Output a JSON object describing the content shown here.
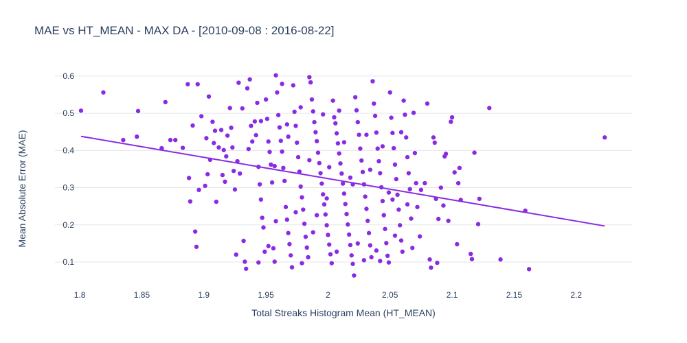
{
  "chart_data": {
    "type": "scatter",
    "title": "MAE vs HT_MEAN - MAX DA - [2010-09-08 : 2016-08-22]",
    "xlabel": "Total Streaks Histogram Mean (HT_MEAN)",
    "ylabel": "Mean Absolute Error (MAE)",
    "xlim": [
      1.78,
      2.245
    ],
    "ylim": [
      0.03,
      0.62
    ],
    "x_ticks": [
      "1.8",
      "1.85",
      "1.9",
      "1.95",
      "2",
      "2.05",
      "2.1",
      "2.15",
      "2.2"
    ],
    "x_tick_values": [
      1.8,
      1.85,
      1.9,
      1.95,
      2.0,
      2.05,
      2.1,
      2.15,
      2.2
    ],
    "y_ticks": [
      "0.1",
      "0.2",
      "0.3",
      "0.4",
      "0.5",
      "0.6"
    ],
    "y_tick_values": [
      0.1,
      0.2,
      0.3,
      0.4,
      0.5,
      0.6
    ],
    "grid": "horizontal",
    "colors": {
      "series": "#8a2be2",
      "text": "#2a3f5f",
      "grid": "#e4e6ea"
    },
    "trendline": {
      "x": [
        1.801,
        2.223
      ],
      "y": [
        0.438,
        0.197
      ]
    },
    "points": [
      [
        1.801,
        0.507
      ],
      [
        1.819,
        0.556
      ],
      [
        1.835,
        0.428
      ],
      [
        1.846,
        0.437
      ],
      [
        1.847,
        0.506
      ],
      [
        1.866,
        0.406
      ],
      [
        1.869,
        0.53
      ],
      [
        1.873,
        0.428
      ],
      [
        1.877,
        0.428
      ],
      [
        1.883,
        0.407
      ],
      [
        1.887,
        0.578
      ],
      [
        1.888,
        0.326
      ],
      [
        1.889,
        0.263
      ],
      [
        1.891,
        0.467
      ],
      [
        1.893,
        0.182
      ],
      [
        1.894,
        0.141
      ],
      [
        1.895,
        0.578
      ],
      [
        1.896,
        0.294
      ],
      [
        1.898,
        0.492
      ],
      [
        1.901,
        0.305
      ],
      [
        1.902,
        0.433
      ],
      [
        1.903,
        0.336
      ],
      [
        1.904,
        0.545
      ],
      [
        1.905,
        0.375
      ],
      [
        1.907,
        0.477
      ],
      [
        1.908,
        0.42
      ],
      [
        1.909,
        0.453
      ],
      [
        1.91,
        0.262
      ],
      [
        1.912,
        0.408
      ],
      [
        1.914,
        0.455
      ],
      [
        1.916,
        0.401
      ],
      [
        1.917,
        0.316
      ],
      [
        1.918,
        0.384
      ],
      [
        1.919,
        0.44
      ],
      [
        1.921,
        0.514
      ],
      [
        1.922,
        0.461
      ],
      [
        1.923,
        0.408
      ],
      [
        1.924,
        0.345
      ],
      [
        1.925,
        0.295
      ],
      [
        1.927,
        0.371
      ],
      [
        1.928,
        0.582
      ],
      [
        1.929,
        0.338
      ],
      [
        1.931,
        0.513
      ],
      [
        1.932,
        0.157
      ],
      [
        1.933,
        0.101
      ],
      [
        1.934,
        0.082
      ],
      [
        1.935,
        0.567
      ],
      [
        1.936,
        0.404
      ],
      [
        1.937,
        0.591
      ],
      [
        1.939,
        0.424
      ],
      [
        1.941,
        0.478
      ],
      [
        1.942,
        0.441
      ],
      [
        1.943,
        0.528
      ],
      [
        1.944,
        0.356
      ],
      [
        1.945,
        0.309
      ],
      [
        1.946,
        0.268
      ],
      [
        1.947,
        0.219
      ],
      [
        1.948,
        0.193
      ],
      [
        1.949,
        0.128
      ],
      [
        1.95,
        0.537
      ],
      [
        1.951,
        0.485
      ],
      [
        1.952,
        0.424
      ],
      [
        1.953,
        0.396
      ],
      [
        1.954,
        0.362
      ],
      [
        1.955,
        0.314
      ],
      [
        1.956,
        0.137
      ],
      [
        1.957,
        0.101
      ],
      [
        1.958,
        0.602
      ],
      [
        1.959,
        0.556
      ],
      [
        1.96,
        0.495
      ],
      [
        1.961,
        0.462
      ],
      [
        1.962,
        0.426
      ],
      [
        1.963,
        0.397
      ],
      [
        1.964,
        0.353
      ],
      [
        1.965,
        0.318
      ],
      [
        1.966,
        0.248
      ],
      [
        1.967,
        0.214
      ],
      [
        1.968,
        0.178
      ],
      [
        1.969,
        0.148
      ],
      [
        1.97,
        0.118
      ],
      [
        1.971,
        0.086
      ],
      [
        1.972,
        0.575
      ],
      [
        1.973,
        0.504
      ],
      [
        1.974,
        0.466
      ],
      [
        1.975,
        0.421
      ],
      [
        1.976,
        0.382
      ],
      [
        1.977,
        0.343
      ],
      [
        1.978,
        0.303
      ],
      [
        1.979,
        0.274
      ],
      [
        1.98,
        0.241
      ],
      [
        1.981,
        0.203
      ],
      [
        1.982,
        0.168
      ],
      [
        1.983,
        0.139
      ],
      [
        1.984,
        0.113
      ],
      [
        1.985,
        0.597
      ],
      [
        1.986,
        0.583
      ],
      [
        1.987,
        0.537
      ],
      [
        1.988,
        0.505
      ],
      [
        1.989,
        0.476
      ],
      [
        1.99,
        0.449
      ],
      [
        1.991,
        0.425
      ],
      [
        1.992,
        0.394
      ],
      [
        1.993,
        0.366
      ],
      [
        1.994,
        0.339
      ],
      [
        1.995,
        0.311
      ],
      [
        1.996,
        0.282
      ],
      [
        1.997,
        0.255
      ],
      [
        1.998,
        0.228
      ],
      [
        1.999,
        0.199
      ],
      [
        2.0,
        0.173
      ],
      [
        2.001,
        0.147
      ],
      [
        2.002,
        0.121
      ],
      [
        2.003,
        0.097
      ],
      [
        2.004,
        0.534
      ],
      [
        2.005,
        0.489
      ],
      [
        2.006,
        0.473
      ],
      [
        2.007,
        0.446
      ],
      [
        2.008,
        0.419
      ],
      [
        2.009,
        0.392
      ],
      [
        2.01,
        0.365
      ],
      [
        2.011,
        0.338
      ],
      [
        2.012,
        0.311
      ],
      [
        2.013,
        0.284
      ],
      [
        2.014,
        0.256
      ],
      [
        2.015,
        0.229
      ],
      [
        2.016,
        0.201
      ],
      [
        2.017,
        0.174
      ],
      [
        2.018,
        0.146
      ],
      [
        2.019,
        0.118
      ],
      [
        2.02,
        0.095
      ],
      [
        2.021,
        0.064
      ],
      [
        2.022,
        0.543
      ],
      [
        2.023,
        0.508
      ],
      [
        2.024,
        0.476
      ],
      [
        2.025,
        0.442
      ],
      [
        2.026,
        0.405
      ],
      [
        2.027,
        0.373
      ],
      [
        2.028,
        0.342
      ],
      [
        2.029,
        0.309
      ],
      [
        2.03,
        0.276
      ],
      [
        2.031,
        0.243
      ],
      [
        2.032,
        0.211
      ],
      [
        2.033,
        0.178
      ],
      [
        2.034,
        0.145
      ],
      [
        2.035,
        0.113
      ],
      [
        2.036,
        0.586
      ],
      [
        2.037,
        0.526
      ],
      [
        2.038,
        0.493
      ],
      [
        2.039,
        0.448
      ],
      [
        2.04,
        0.405
      ],
      [
        2.041,
        0.371
      ],
      [
        2.042,
        0.339
      ],
      [
        2.043,
        0.301
      ],
      [
        2.044,
        0.264
      ],
      [
        2.045,
        0.226
      ],
      [
        2.046,
        0.189
      ],
      [
        2.047,
        0.151
      ],
      [
        2.048,
        0.117
      ],
      [
        2.049,
        0.099
      ],
      [
        2.05,
        0.556
      ],
      [
        2.051,
        0.488
      ],
      [
        2.052,
        0.447
      ],
      [
        2.053,
        0.406
      ],
      [
        2.054,
        0.362
      ],
      [
        2.055,
        0.323
      ],
      [
        2.056,
        0.281
      ],
      [
        2.057,
        0.241
      ],
      [
        2.058,
        0.199
      ],
      [
        2.059,
        0.158
      ],
      [
        2.06,
        0.128
      ],
      [
        2.061,
        0.534
      ],
      [
        2.062,
        0.496
      ],
      [
        2.063,
        0.435
      ],
      [
        2.064,
        0.382
      ],
      [
        2.065,
        0.339
      ],
      [
        2.066,
        0.296
      ],
      [
        2.067,
        0.217
      ],
      [
        2.068,
        0.138
      ],
      [
        2.069,
        0.501
      ],
      [
        2.07,
        0.393
      ],
      [
        2.071,
        0.312
      ],
      [
        2.072,
        0.248
      ],
      [
        2.074,
        0.169
      ],
      [
        2.075,
        0.294
      ],
      [
        2.078,
        0.312
      ],
      [
        2.08,
        0.526
      ],
      [
        2.082,
        0.107
      ],
      [
        2.083,
        0.085
      ],
      [
        2.085,
        0.435
      ],
      [
        2.086,
        0.421
      ],
      [
        2.087,
        0.27
      ],
      [
        2.088,
        0.098
      ],
      [
        2.089,
        0.216
      ],
      [
        2.091,
        0.3
      ],
      [
        2.093,
        0.252
      ],
      [
        2.094,
        0.384
      ],
      [
        2.095,
        0.391
      ],
      [
        2.097,
        0.211
      ],
      [
        2.099,
        0.477
      ],
      [
        2.1,
        0.489
      ],
      [
        2.102,
        0.341
      ],
      [
        2.104,
        0.148
      ],
      [
        2.105,
        0.312
      ],
      [
        2.106,
        0.353
      ],
      [
        2.107,
        0.267
      ],
      [
        2.115,
        0.122
      ],
      [
        2.116,
        0.108
      ],
      [
        2.118,
        0.394
      ],
      [
        2.121,
        0.202
      ],
      [
        2.122,
        0.27
      ],
      [
        2.13,
        0.514
      ],
      [
        2.139,
        0.107
      ],
      [
        2.159,
        0.238
      ],
      [
        2.162,
        0.081
      ],
      [
        2.223,
        0.435
      ],
      [
        1.915,
        0.334
      ],
      [
        1.926,
        0.12
      ],
      [
        1.938,
        0.466
      ],
      [
        1.944,
        0.099
      ],
      [
        1.952,
        0.143
      ],
      [
        1.958,
        0.21
      ],
      [
        1.963,
        0.579
      ],
      [
        1.968,
        0.437
      ],
      [
        1.974,
        0.234
      ],
      [
        1.979,
        0.097
      ],
      [
        1.985,
        0.374
      ],
      [
        1.991,
        0.226
      ],
      [
        1.996,
        0.497
      ],
      [
        2.001,
        0.355
      ],
      [
        2.007,
        0.128
      ],
      [
        2.013,
        0.422
      ],
      [
        2.018,
        0.327
      ],
      [
        2.024,
        0.15
      ],
      [
        2.029,
        0.105
      ],
      [
        2.034,
        0.348
      ],
      [
        2.039,
        0.131
      ],
      [
        2.044,
        0.411
      ],
      [
        2.049,
        0.287
      ],
      [
        2.054,
        0.171
      ],
      [
        2.059,
        0.449
      ],
      [
        2.064,
        0.255
      ],
      [
        1.946,
        0.479
      ],
      [
        1.957,
        0.358
      ],
      [
        1.967,
        0.47
      ],
      [
        1.978,
        0.516
      ],
      [
        1.988,
        0.18
      ],
      [
        1.999,
        0.271
      ],
      [
        2.009,
        0.507
      ],
      [
        2.02,
        0.309
      ],
      [
        2.031,
        0.442
      ],
      [
        2.042,
        0.103
      ],
      [
        2.052,
        0.268
      ]
    ]
  }
}
